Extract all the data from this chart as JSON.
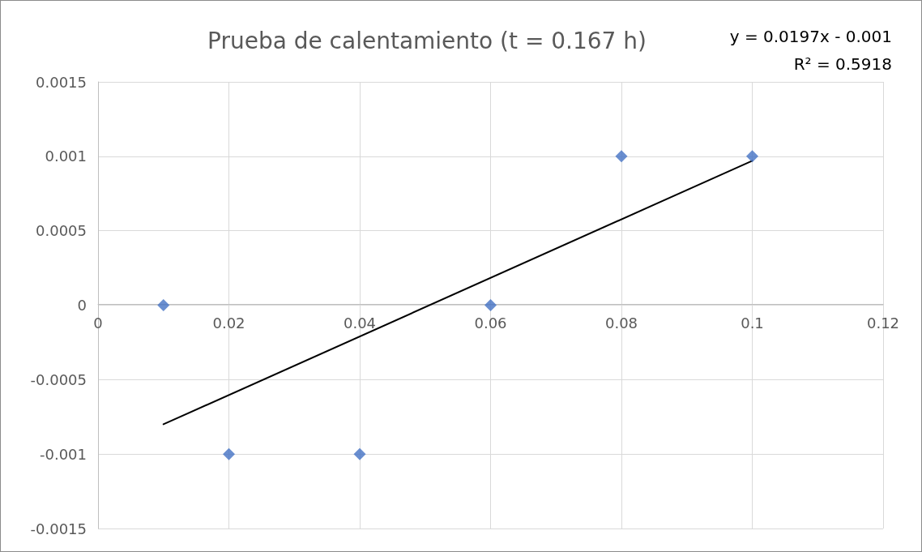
{
  "chart_data": {
    "type": "scatter",
    "title": "Prueba de calentamiento (t = 0.167 h)",
    "annotations": [
      "y = 0.0197x - 0.001",
      "R² = 0.5918"
    ],
    "series": [
      {
        "color": "#4472c4",
        "marker": "diamond",
        "x": [
          0.01,
          0.02,
          0.04,
          0.06,
          0.08,
          0.1
        ],
        "values": [
          0,
          -0.001,
          -0.001,
          0,
          0.001,
          0.001
        ]
      },
      {
        "type": "line",
        "color": "#000000",
        "marker": "none",
        "line_style": "solid",
        "x": [
          0.01,
          0.1
        ],
        "values": [
          -0.0008,
          0.00097
        ]
      }
    ],
    "xlim": [
      0,
      0.12
    ],
    "xticks": [
      0,
      0.02,
      0.04,
      0.06,
      0.08,
      0.1,
      0.12
    ],
    "ylim": [
      -0.0015,
      0.0015
    ],
    "yticks": [
      -0.0015,
      -0.001,
      -0.0005,
      0,
      0.0005,
      0.001,
      0.0015
    ],
    "grid": true
  }
}
